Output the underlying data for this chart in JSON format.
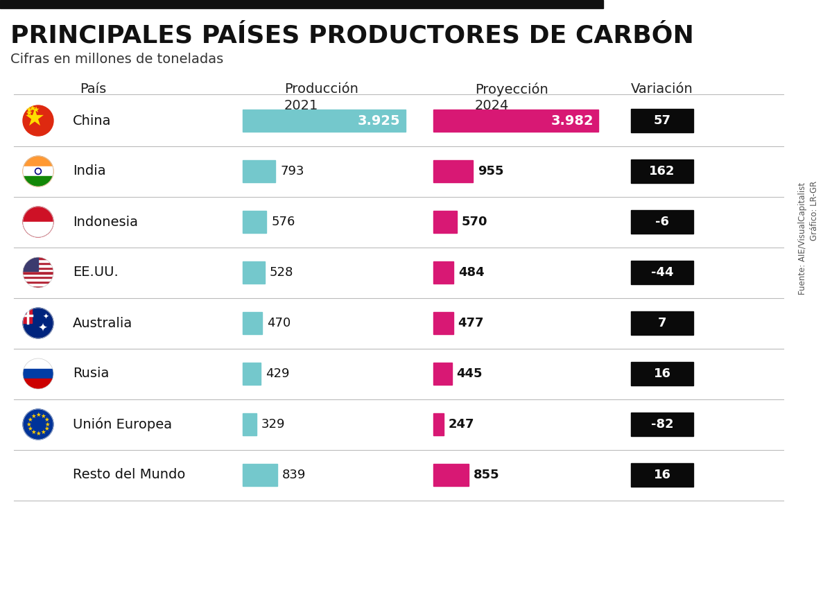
{
  "title": "PRINCIPALES PAÍSES PRODUCTORES DE CARBÓN",
  "subtitle": "Cifras en millones de toneladas",
  "countries": [
    "China",
    "India",
    "Indonesia",
    "EE.UU.",
    "Australia",
    "Rusia",
    "Unión Europea",
    "Resto del Mundo"
  ],
  "prod_2021": [
    3925,
    793,
    576,
    528,
    470,
    429,
    329,
    839
  ],
  "prod_2024": [
    3982,
    955,
    570,
    484,
    477,
    445,
    247,
    855
  ],
  "variacion_str": [
    "57",
    "162",
    "-6",
    "-44",
    "7",
    "16",
    "-82",
    "16"
  ],
  "prod_2021_str": [
    "3.925",
    "793",
    "576",
    "528",
    "470",
    "429",
    "329",
    "839"
  ],
  "prod_2024_str": [
    "3.982",
    "955",
    "570",
    "484",
    "477",
    "445",
    "247",
    "855"
  ],
  "bar_color_2021": "#74C8CC",
  "bar_color_2024": "#D81874",
  "variacion_bg": "#0a0a0a",
  "variacion_text": "#ffffff",
  "bg_color": "#ffffff",
  "title_color": "#111111",
  "max_val": 4100,
  "source_text": "Fuente: AIE/VisualCapitalist",
  "credit_text": "Gráfico: LR-GR",
  "top_bar_color": "#111111",
  "separator_color": "#bbbbbb",
  "flag_styles": [
    "china",
    "india",
    "indonesia",
    "usa",
    "australia",
    "russia",
    "eu",
    "world"
  ],
  "header_prod2021": "Producción\n2021",
  "header_proy2024": "Proyección\n2024",
  "header_variacion": "Variación",
  "header_pais": "País"
}
